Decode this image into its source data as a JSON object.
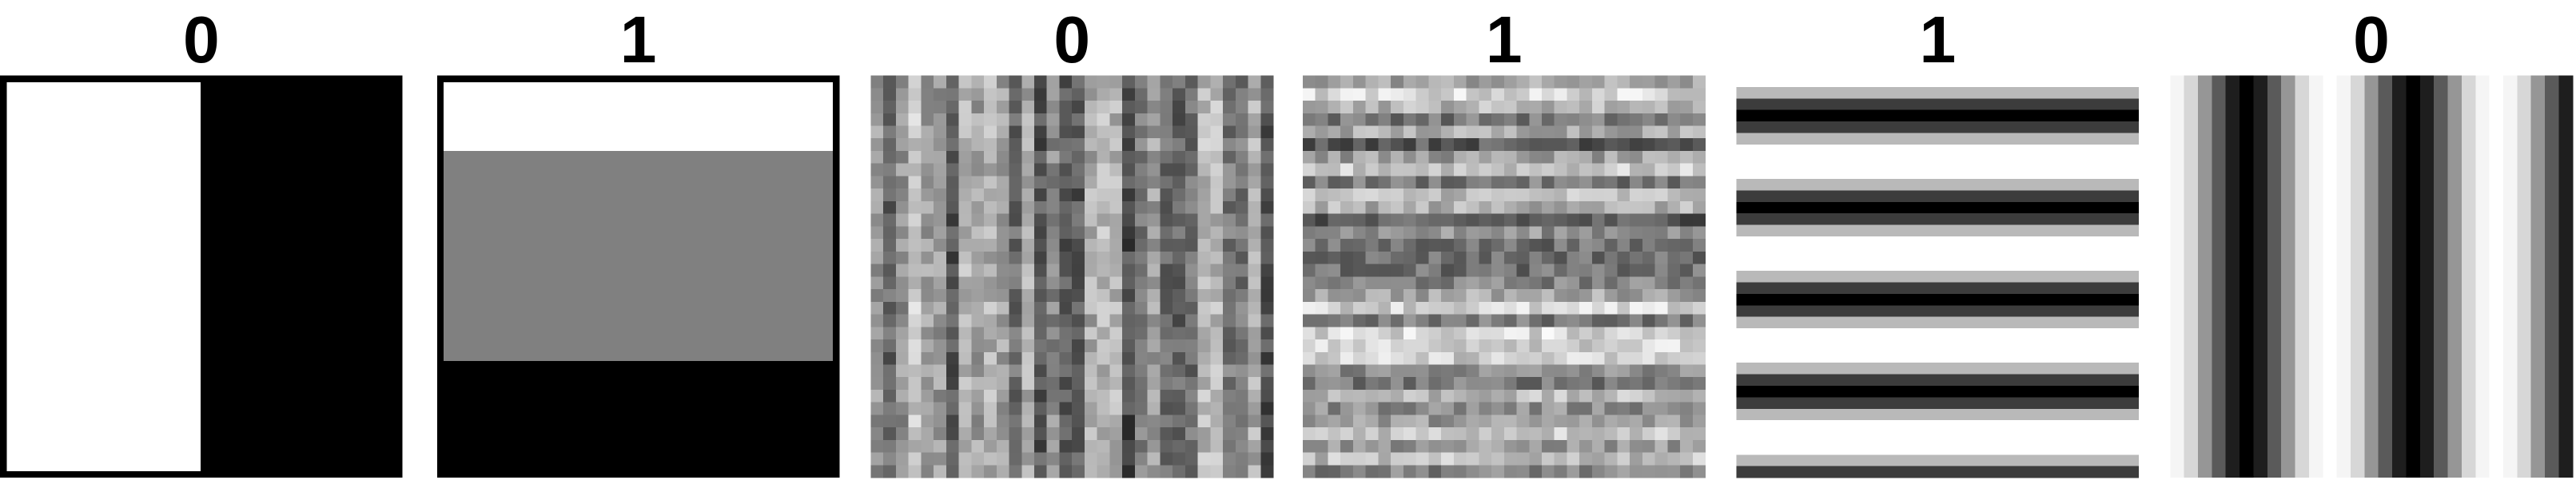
{
  "panels": [
    {
      "label": "0"
    },
    {
      "label": "1"
    },
    {
      "label": "0"
    },
    {
      "label": "1"
    },
    {
      "label": "1"
    },
    {
      "label": "0"
    }
  ]
}
